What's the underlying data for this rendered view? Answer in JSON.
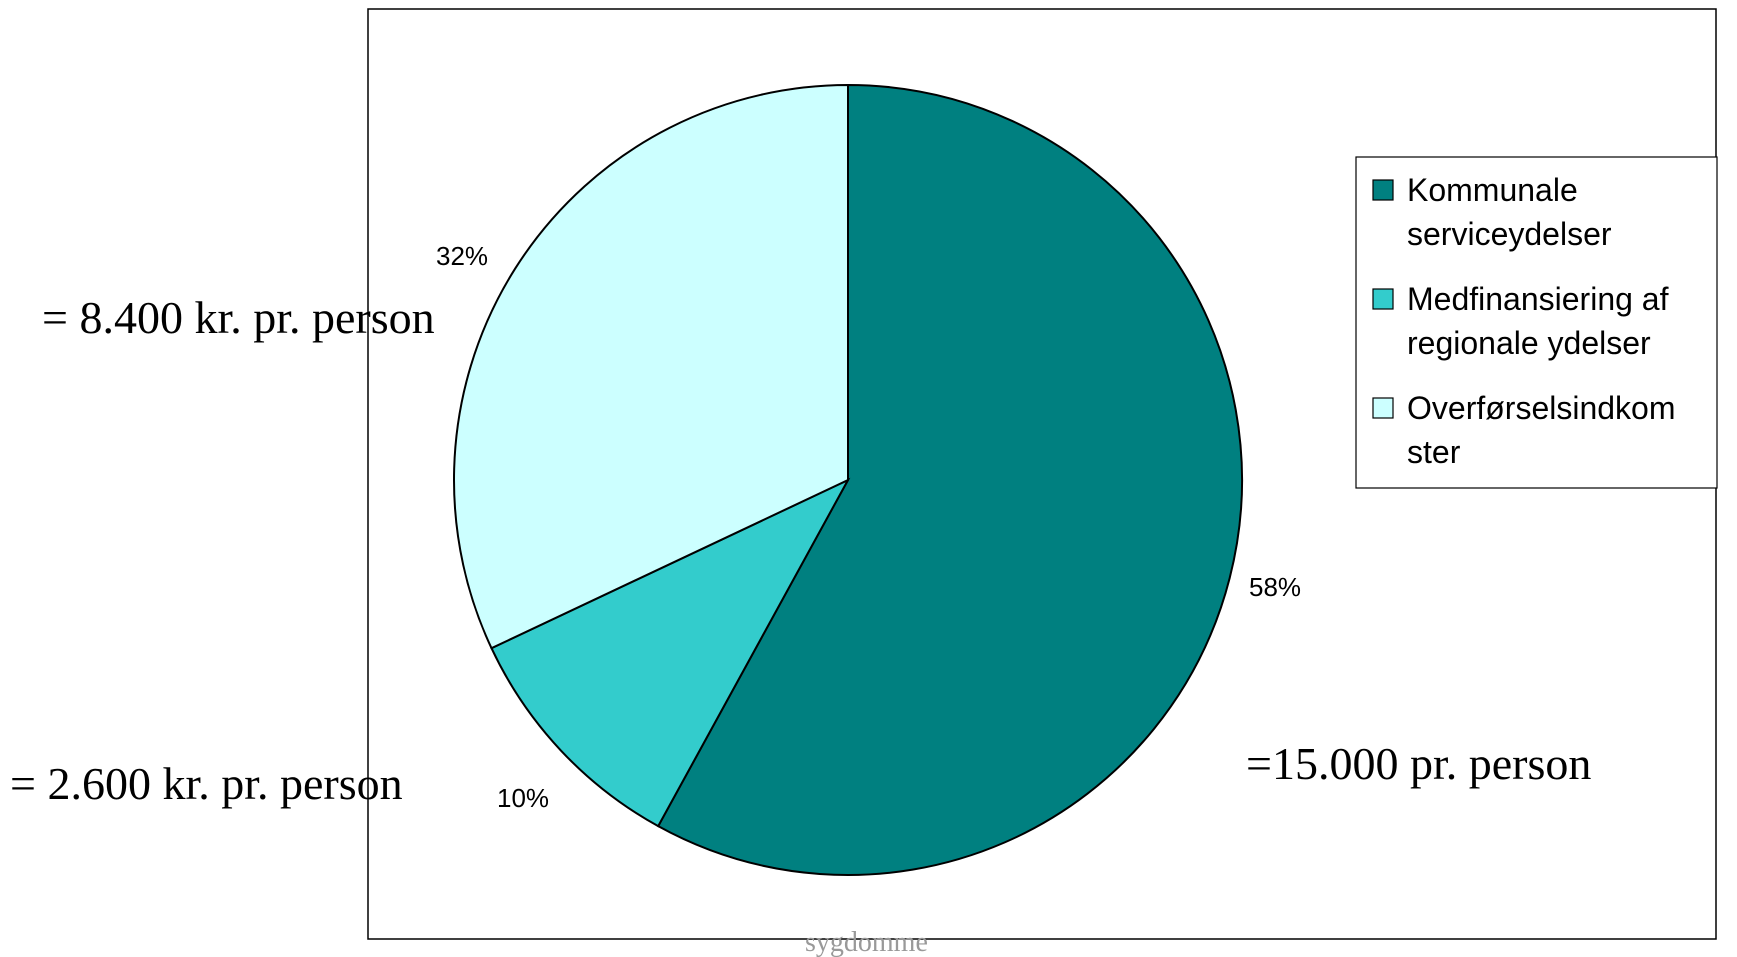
{
  "chart_data": {
    "type": "pie",
    "title": "",
    "slices": [
      {
        "name": "Kommunale serviceydelser",
        "value": 58,
        "label": "58%",
        "color": "#008080"
      },
      {
        "name": "Medfinansiering af regionale ydelser",
        "value": 10,
        "label": "10%",
        "color": "#33CCCC"
      },
      {
        "name": "Overførselsindkomster",
        "value": 32,
        "label": "32%",
        "color": "#CCFFFF"
      }
    ],
    "legend": {
      "placement": "right",
      "entries": [
        {
          "lines": [
            "Kommunale",
            "serviceydelser"
          ]
        },
        {
          "lines": [
            "Medfinansiering af",
            "regionale ydelser"
          ]
        },
        {
          "lines": [
            "Overførselsindkom",
            "ster"
          ]
        }
      ]
    },
    "annotations": [
      "= 8.400 kr. pr. person",
      "= 2.600 kr. pr. person",
      "=15.000 pr. person"
    ],
    "footer_text": "sygdomme"
  }
}
